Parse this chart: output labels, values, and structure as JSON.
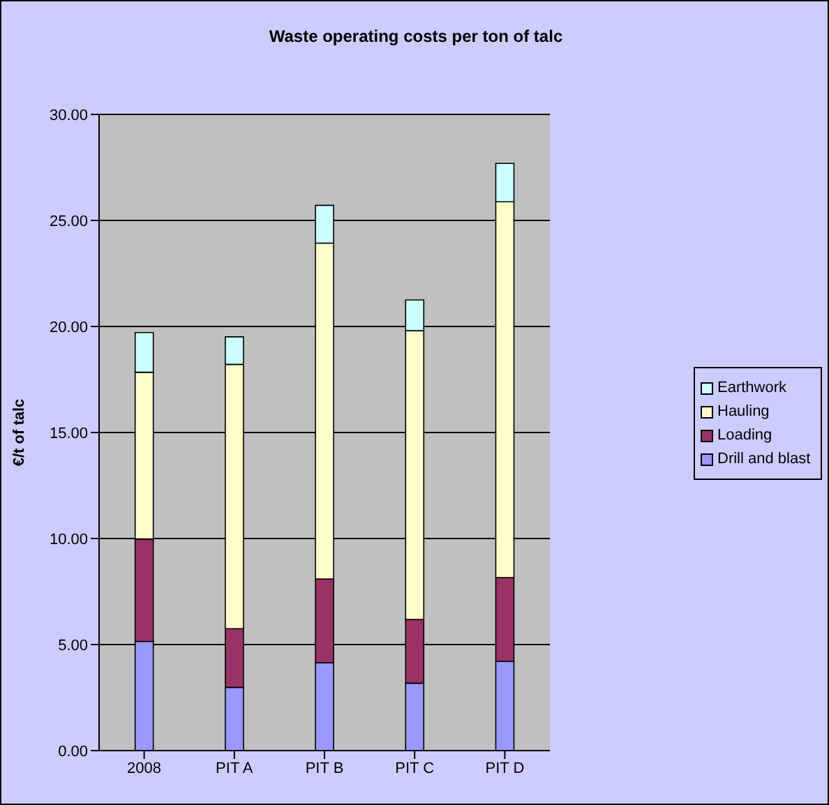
{
  "chart_data": {
    "type": "bar",
    "title": "Waste operating costs per ton of talc",
    "ylabel": "€/t of talc",
    "categories": [
      "2008",
      "PIT A",
      "PIT B",
      "PIT C",
      "PIT D"
    ],
    "stacked": true,
    "series": [
      {
        "name": "Drill and blast",
        "color": "#9999ff",
        "values": [
          5.15,
          2.98,
          4.14,
          3.18,
          4.21
        ]
      },
      {
        "name": "Loading",
        "color": "#993366",
        "values": [
          4.83,
          2.77,
          3.95,
          3.0,
          3.95
        ]
      },
      {
        "name": "Hauling",
        "color": "#ffffcc",
        "values": [
          7.86,
          12.46,
          15.84,
          13.62,
          17.72
        ]
      },
      {
        "name": "Earthwork",
        "color": "#ccffff",
        "values": [
          1.87,
          1.3,
          1.78,
          1.45,
          1.81
        ]
      }
    ],
    "ylim": [
      0,
      30
    ],
    "yticks": [
      {
        "value": 0,
        "label": "0.00"
      },
      {
        "value": 5,
        "label": "5.00"
      },
      {
        "value": 10,
        "label": "10.00"
      },
      {
        "value": 15,
        "label": "15.00"
      },
      {
        "value": 20,
        "label": "20.00"
      },
      {
        "value": 25,
        "label": "25.00"
      },
      {
        "value": 30,
        "label": "30.00"
      }
    ],
    "grid": "y",
    "legend": "right"
  }
}
